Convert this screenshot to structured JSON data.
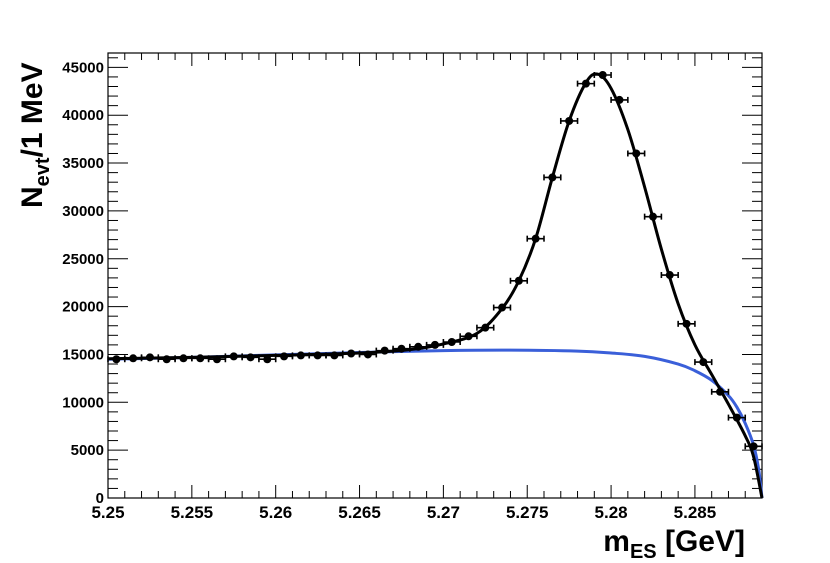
{
  "chart_data": {
    "type": "scatter",
    "title": "",
    "ylabel": {
      "main": "N",
      "sub": "evt",
      "rest": "/1 MeV"
    },
    "xlabel": {
      "main": "m",
      "sub": "ES",
      "rest": " [GeV]"
    },
    "xlim": [
      5.25,
      5.289
    ],
    "ylim": [
      0,
      46500
    ],
    "x_ticks": [
      5.25,
      5.255,
      5.26,
      5.265,
      5.27,
      5.275,
      5.28,
      5.285
    ],
    "x_tick_labels": [
      "5.25",
      "5.255",
      "5.26",
      "5.265",
      "5.27",
      "5.275",
      "5.28",
      "5.285"
    ],
    "y_ticks": [
      0,
      5000,
      10000,
      15000,
      20000,
      25000,
      30000,
      35000,
      40000,
      45000
    ],
    "y_tick_labels": [
      "0",
      "5000",
      "10000",
      "15000",
      "20000",
      "25000",
      "30000",
      "35000",
      "40000",
      "45000"
    ],
    "grid": false,
    "bin_half_width": 0.0005,
    "series": [
      {
        "kind": "points",
        "color": "#000000",
        "x": [
          5.2505,
          5.2515,
          5.2525,
          5.2535,
          5.2545,
          5.2555,
          5.2565,
          5.2575,
          5.2585,
          5.2595,
          5.2605,
          5.2615,
          5.2625,
          5.2635,
          5.2645,
          5.2655,
          5.2665,
          5.2675,
          5.2685,
          5.2695,
          5.2705,
          5.2715,
          5.2725,
          5.2735,
          5.2745,
          5.2755,
          5.2765,
          5.2775,
          5.2785,
          5.2795,
          5.2805,
          5.2815,
          5.2825,
          5.2835,
          5.2845,
          5.2855,
          5.2865,
          5.2875,
          5.2885
        ],
        "y": [
          14500,
          14600,
          14700,
          14500,
          14600,
          14600,
          14500,
          14800,
          14700,
          14500,
          14800,
          14900,
          14900,
          14900,
          15100,
          15000,
          15400,
          15600,
          15800,
          16000,
          16300,
          16900,
          17800,
          19900,
          22700,
          27100,
          33500,
          39400,
          43300,
          44200,
          41600,
          36000,
          29400,
          23300,
          18200,
          14200,
          11100,
          8400,
          5400
        ]
      },
      {
        "kind": "line",
        "color": "#000000",
        "x": [
          5.25,
          5.255,
          5.26,
          5.265,
          5.268,
          5.27,
          5.272,
          5.2735,
          5.2745,
          5.2755,
          5.2765,
          5.2775,
          5.2785,
          5.2792,
          5.28,
          5.281,
          5.282,
          5.283,
          5.284,
          5.285,
          5.286,
          5.287,
          5.288,
          5.2885,
          5.289
        ],
        "y": [
          14550,
          14700,
          14900,
          15150,
          15500,
          16100,
          17200,
          19800,
          22700,
          27100,
          33500,
          39400,
          43400,
          44300,
          42800,
          38500,
          32500,
          26000,
          20300,
          16000,
          12900,
          9800,
          6500,
          4300,
          0
        ]
      },
      {
        "kind": "line",
        "color": "#3a5fd9",
        "x": [
          5.25,
          5.255,
          5.26,
          5.265,
          5.27,
          5.274,
          5.278,
          5.28,
          5.282,
          5.284,
          5.285,
          5.286,
          5.287,
          5.2875,
          5.288,
          5.2885,
          5.2888,
          5.289
        ],
        "y": [
          14500,
          14700,
          14950,
          15200,
          15400,
          15450,
          15350,
          15150,
          14800,
          14000,
          13300,
          12300,
          10700,
          9500,
          7800,
          5500,
          3000,
          0
        ]
      }
    ]
  }
}
